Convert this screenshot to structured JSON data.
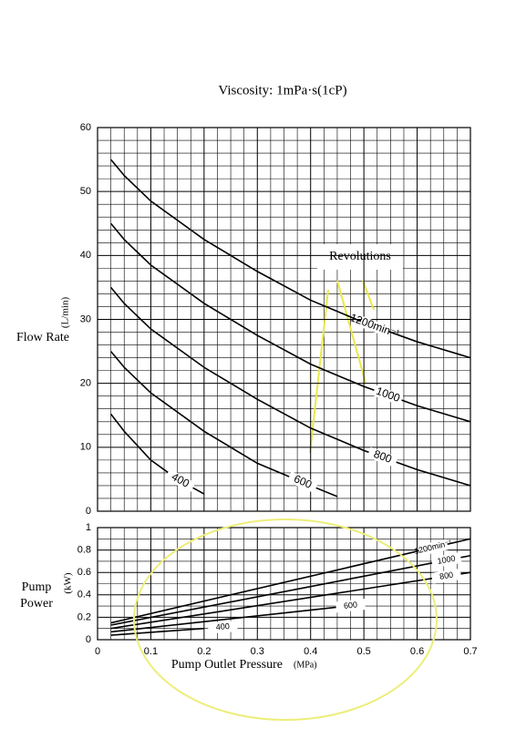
{
  "chart_data": [
    {
      "type": "line",
      "title": "Viscosity: 1mPa·s(1cP)",
      "ylabel": "Flow Rate",
      "yunit": "(L/min)",
      "annotation": "Revolutions",
      "xlim": [
        0,
        0.7
      ],
      "xticks": [
        0,
        0.1,
        0.2,
        0.3,
        0.4,
        0.5,
        0.6,
        0.7
      ],
      "ylim": [
        0,
        60
      ],
      "yticks": [
        0,
        10,
        20,
        30,
        40,
        50,
        60
      ],
      "grid": true,
      "series": [
        {
          "name": "1200min⁻¹",
          "color": "#000000",
          "x": [
            0.025,
            0.05,
            0.1,
            0.2,
            0.3,
            0.4,
            0.5,
            0.6,
            0.7
          ],
          "values": [
            55,
            52.5,
            48.5,
            42.5,
            37.5,
            33,
            29.5,
            26.5,
            24
          ]
        },
        {
          "name": "1000",
          "color": "#000000",
          "x": [
            0.025,
            0.05,
            0.1,
            0.2,
            0.3,
            0.4,
            0.5,
            0.6,
            0.7
          ],
          "values": [
            45,
            42.5,
            38.5,
            32.5,
            27.5,
            23,
            19.5,
            16.5,
            14
          ]
        },
        {
          "name": "800",
          "color": "#000000",
          "x": [
            0.025,
            0.05,
            0.1,
            0.2,
            0.3,
            0.4,
            0.5,
            0.6,
            0.7
          ],
          "values": [
            35,
            32.5,
            28.5,
            22.5,
            17.5,
            13,
            9.5,
            6.5,
            4
          ]
        },
        {
          "name": "600",
          "color": "#000000",
          "x": [
            0.025,
            0.05,
            0.1,
            0.2,
            0.3,
            0.4,
            0.45
          ],
          "values": [
            25,
            22.5,
            18.5,
            12.5,
            7.5,
            4,
            2.3
          ]
        },
        {
          "name": "400",
          "color": "#000000",
          "x": [
            0.025,
            0.05,
            0.1,
            0.15,
            0.2
          ],
          "values": [
            15.2,
            12.5,
            8,
            5,
            2.7
          ]
        }
      ]
    },
    {
      "type": "line",
      "ylabel": "Pump Power",
      "yunit": "(kW)",
      "xlabel": "Pump Outlet Pressure",
      "xunit": "(MPa)",
      "xlim": [
        0,
        0.7
      ],
      "xticks": [
        0,
        0.1,
        0.2,
        0.3,
        0.4,
        0.5,
        0.6,
        0.7
      ],
      "ylim": [
        0,
        1
      ],
      "yticks": [
        0,
        0.2,
        0.4,
        0.6,
        0.8,
        1
      ],
      "grid": true,
      "series": [
        {
          "name": "1200min⁻¹",
          "color": "#000000",
          "x": [
            0.025,
            0.7
          ],
          "values": [
            0.15,
            0.9
          ]
        },
        {
          "name": "1000",
          "color": "#000000",
          "x": [
            0.025,
            0.7
          ],
          "values": [
            0.13,
            0.75
          ]
        },
        {
          "name": "800",
          "color": "#000000",
          "x": [
            0.025,
            0.7
          ],
          "values": [
            0.1,
            0.6
          ]
        },
        {
          "name": "600",
          "color": "#000000",
          "x": [
            0.025,
            0.45
          ],
          "values": [
            0.07,
            0.29
          ]
        },
        {
          "name": "400",
          "color": "#000000",
          "x": [
            0.025,
            0.2
          ],
          "values": [
            0.04,
            0.1
          ]
        }
      ]
    }
  ]
}
